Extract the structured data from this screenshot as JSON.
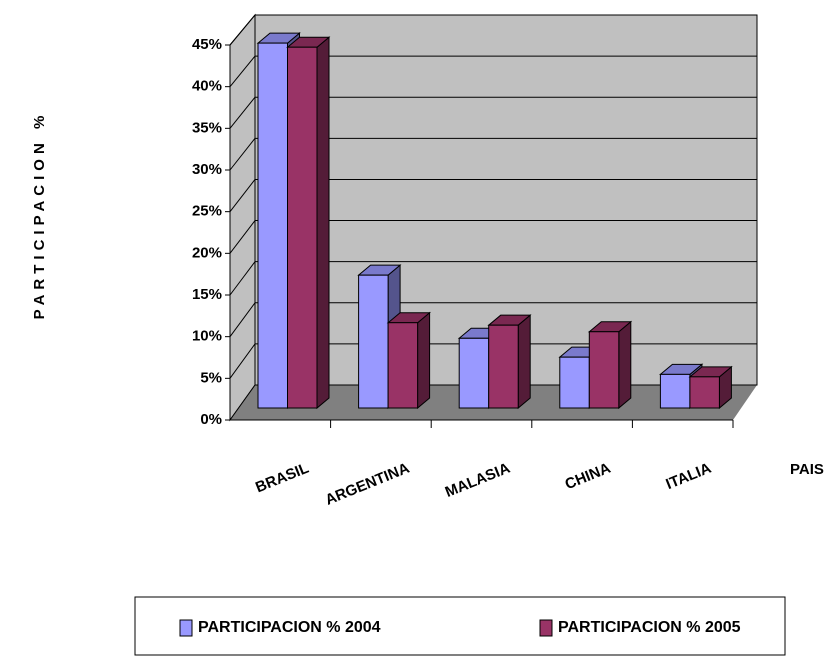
{
  "chart_data": {
    "type": "bar3d",
    "x_label": "PAIS",
    "y_label": "PARTICIPACION %",
    "categories": [
      "BRASIL",
      "ARGENTINA",
      "MALASIA",
      "CHINA",
      "ITALIA"
    ],
    "series": [
      {
        "name": "PARTICIPACION % 2004",
        "color": "#9999ff",
        "values": [
          44.5,
          16.2,
          8.5,
          6.2,
          4.1
        ]
      },
      {
        "name": "PARTICIPACION % 2005",
        "color": "#993366",
        "values": [
          44,
          10.4,
          10.1,
          9.3,
          3.8
        ]
      }
    ],
    "ylim": [
      0,
      45
    ],
    "yticks": [
      {
        "value": 0,
        "label": "0%"
      },
      {
        "value": 5,
        "label": "5%"
      },
      {
        "value": 10,
        "label": "10%"
      },
      {
        "value": 15,
        "label": "15%"
      },
      {
        "value": 20,
        "label": "20%"
      },
      {
        "value": 25,
        "label": "25%"
      },
      {
        "value": 30,
        "label": "30%"
      },
      {
        "value": 35,
        "label": "35%"
      },
      {
        "value": 40,
        "label": "40%"
      },
      {
        "value": 45,
        "label": "45%"
      }
    ],
    "grid": true,
    "legend": "bottom"
  }
}
